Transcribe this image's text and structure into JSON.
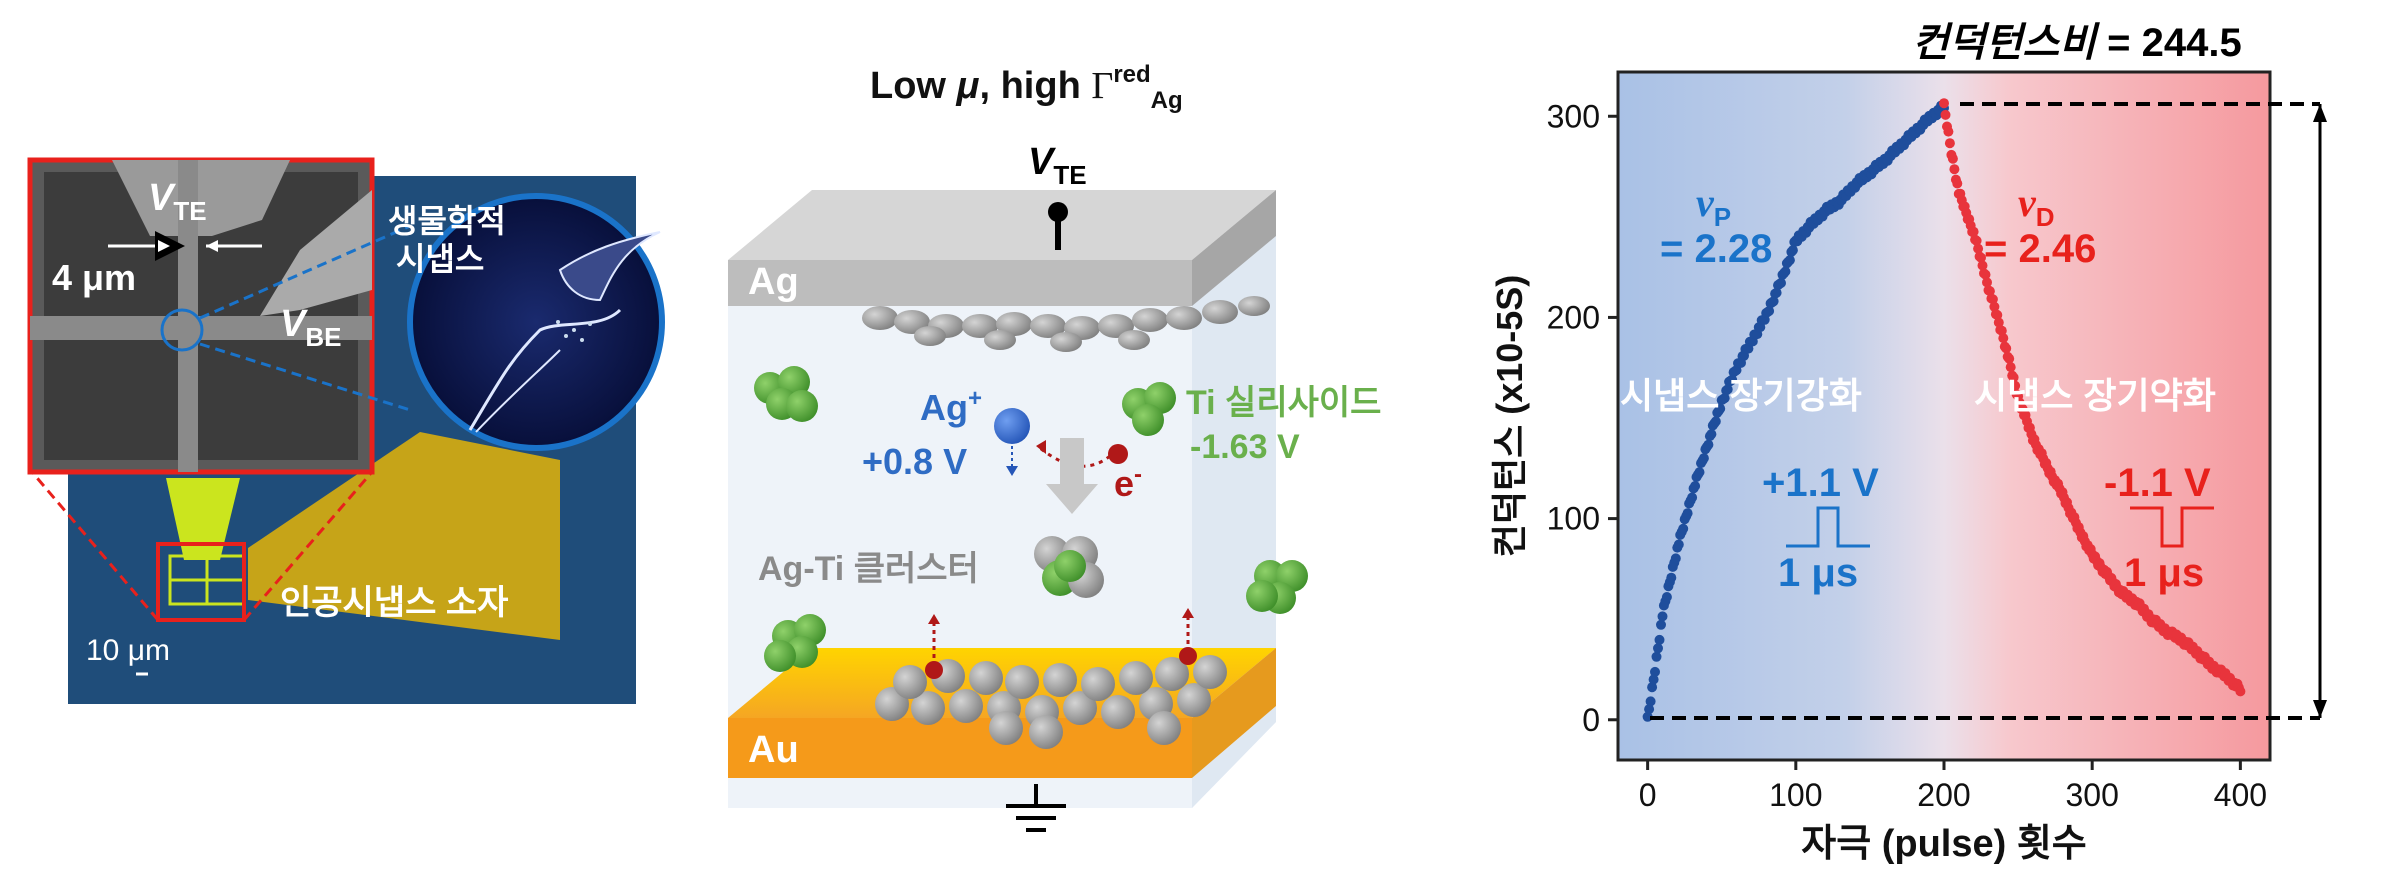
{
  "left_panel": {
    "sem_vte": "V",
    "sem_vte_sub": "TE",
    "sem_vbe": "V",
    "sem_vbe_sub": "BE",
    "sem_gap": "4 μm",
    "bio_synapse_line1": "생물학적",
    "bio_synapse_line2": "시냅스",
    "device_label": "인공시냅스 소자",
    "scale_bar": "10 μm"
  },
  "middle_panel": {
    "title_prefix": "Low",
    "title_mu": "μ",
    "title_mid": ", high",
    "title_gamma": "Γ",
    "title_sup": "red",
    "title_sub": "Ag",
    "vte": "V",
    "vte_sub": "TE",
    "top_electrode": "Ag",
    "bottom_electrode": "Au",
    "ag_ion": "Ag",
    "ag_ion_sup": "+",
    "ag_potential": "+0.8 V",
    "electron": "e",
    "electron_sup": "-",
    "ti_silicide": "Ti 실리사이드",
    "ti_potential": "-1.63 V",
    "cluster": "Ag-Ti 클러스터"
  },
  "right_panel": {
    "ratio_label": "컨덕턴스비",
    "ratio_value": " = 244.5",
    "nu_p": "ν",
    "nu_p_sub": "P",
    "nu_p_value": "= 2.28",
    "nu_d": "ν",
    "nu_d_sub": "D",
    "nu_d_value": "= 2.46",
    "ltp_label": "시냅스 장기강화",
    "ltd_label": "시냅스 장기약화",
    "pos_pulse": "+1.1 V",
    "neg_pulse": "-1.1 V",
    "pulse_width_pos": "1 μs",
    "pulse_width_neg": "1 μs"
  },
  "chart_data": {
    "type": "scatter",
    "xlabel": "자극 (pulse) 횟수",
    "ylabel": "컨덕턴스 (x10-5S)",
    "xlim": [
      -20,
      420
    ],
    "ylim": [
      -20,
      322
    ],
    "xticks": [
      "0",
      "100",
      "200",
      "300",
      "400"
    ],
    "yticks": [
      "0",
      "100",
      "200",
      "300"
    ],
    "series": [
      {
        "name": "시냅스 장기강화",
        "color": "#1f4e9c",
        "x": [
          0,
          5,
          10,
          20,
          30,
          40,
          50,
          60,
          70,
          80,
          90,
          100,
          110,
          120,
          130,
          140,
          150,
          160,
          170,
          180,
          190,
          200
        ],
        "y": [
          0,
          25,
          52,
          85,
          112,
          136,
          158,
          175,
          188,
          201,
          218,
          238,
          246,
          253,
          258,
          266,
          272,
          278,
          285,
          292,
          299,
          305
        ]
      },
      {
        "name": "시냅스 장기약화",
        "color": "#e8343c",
        "x": [
          200,
          205,
          210,
          220,
          230,
          240,
          250,
          260,
          270,
          280,
          290,
          300,
          310,
          320,
          330,
          340,
          350,
          360,
          370,
          380,
          390,
          400
        ],
        "y": [
          305,
          282,
          262,
          242,
          215,
          190,
          160,
          140,
          125,
          112,
          96,
          82,
          72,
          63,
          58,
          50,
          44,
          40,
          34,
          27,
          22,
          15
        ]
      }
    ],
    "annotations": [
      "ν_P = 2.28",
      "ν_D = 2.46",
      "+1.1 V 1 μs",
      "-1.1 V 1 μs",
      "컨덕턴스비 = 244.5"
    ],
    "legend": "none",
    "grid": false
  }
}
